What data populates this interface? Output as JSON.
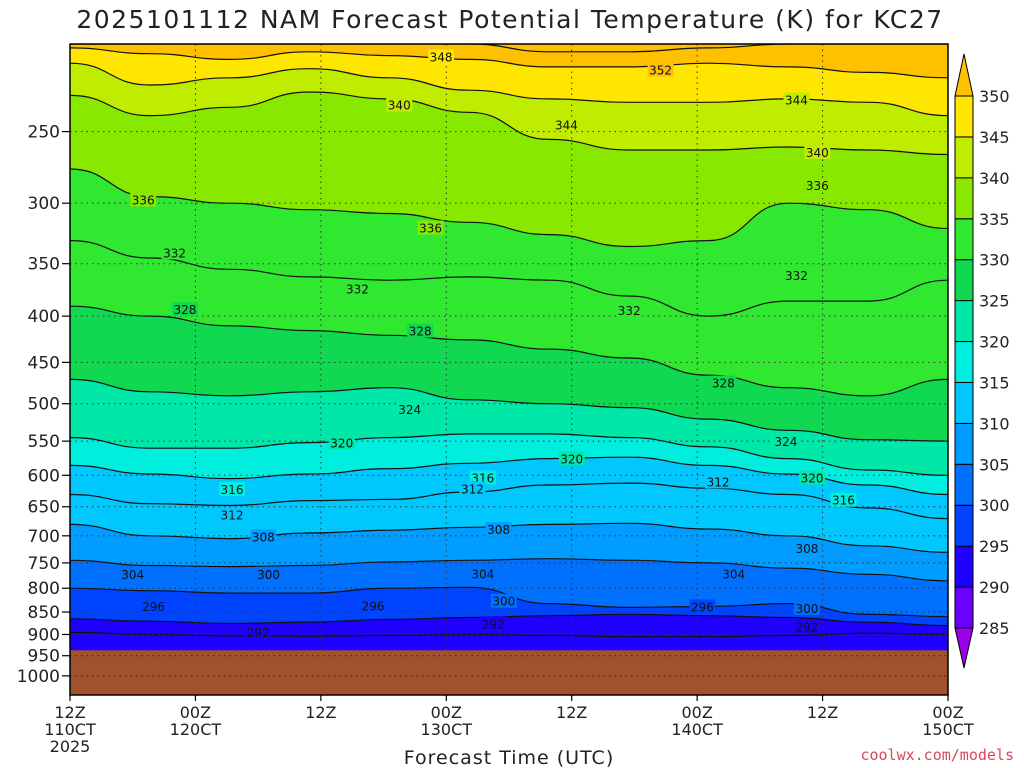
{
  "chart_data": {
    "type": "heatmap",
    "title": "2025101112 NAM Forecast Potential Temperature (K) for KC27",
    "xlabel": "Forecast Time (UTC)",
    "ylabel": "",
    "credit": "coolwx.com/models",
    "x_ticks": [
      {
        "hours": 0,
        "line1": "12Z",
        "line2": "110CT",
        "line3": "2025"
      },
      {
        "hours": 12,
        "line1": "00Z",
        "line2": "120CT",
        "line3": ""
      },
      {
        "hours": 24,
        "line1": "12Z",
        "line2": "",
        "line3": ""
      },
      {
        "hours": 36,
        "line1": "00Z",
        "line2": "130CT",
        "line3": ""
      },
      {
        "hours": 48,
        "line1": "12Z",
        "line2": "",
        "line3": ""
      },
      {
        "hours": 60,
        "line1": "00Z",
        "line2": "140CT",
        "line3": ""
      },
      {
        "hours": 72,
        "line1": "12Z",
        "line2": "",
        "line3": ""
      },
      {
        "hours": 84,
        "line1": "00Z",
        "line2": "150CT",
        "line3": ""
      }
    ],
    "xlim": [
      0,
      84
    ],
    "y_ticks": [
      250,
      300,
      350,
      400,
      450,
      500,
      550,
      600,
      650,
      700,
      750,
      800,
      850,
      900,
      950,
      1000
    ],
    "ylim": [
      1050,
      200
    ],
    "yscale": "log",
    "ground_pressure": 937,
    "ground_color": "#a0522d",
    "colorbar": {
      "levels": [
        285,
        290,
        295,
        300,
        305,
        310,
        315,
        320,
        325,
        330,
        335,
        340,
        345,
        350
      ],
      "colors": [
        "#9b00e8",
        "#6a00ff",
        "#1f00ff",
        "#0044ff",
        "#0070ff",
        "#009cff",
        "#00c8ff",
        "#00eedd",
        "#00e8a8",
        "#10d850",
        "#30e830",
        "#88e800",
        "#c0ec00",
        "#ffe600",
        "#ffc000"
      ]
    },
    "contours": [
      {
        "level": 292,
        "pressure": [
          895,
          900,
          903,
          904,
          902,
          900,
          902,
          905,
          905,
          902,
          897,
          900
        ]
      },
      {
        "level": 296,
        "pressure": [
          865,
          870,
          875,
          872,
          866,
          862,
          858,
          855,
          858,
          862,
          872,
          880
        ]
      },
      {
        "level": 300,
        "pressure": [
          800,
          805,
          810,
          810,
          800,
          798,
          832,
          840,
          838,
          832,
          855,
          860
        ]
      },
      {
        "level": 304,
        "pressure": [
          745,
          755,
          757,
          755,
          748,
          745,
          742,
          745,
          750,
          760,
          772,
          785
        ]
      },
      {
        "level": 308,
        "pressure": [
          680,
          700,
          705,
          695,
          690,
          685,
          680,
          678,
          688,
          700,
          718,
          730
        ]
      },
      {
        "level": 312,
        "pressure": [
          630,
          645,
          648,
          640,
          638,
          626,
          615,
          612,
          620,
          630,
          652,
          670
        ]
      },
      {
        "level": 316,
        "pressure": [
          585,
          598,
          605,
          598,
          590,
          582,
          575,
          573,
          585,
          598,
          615,
          630
        ]
      },
      {
        "level": 320,
        "pressure": [
          545,
          560,
          560,
          552,
          545,
          540,
          540,
          545,
          558,
          575,
          592,
          600
        ]
      },
      {
        "level": 324,
        "pressure": [
          470,
          485,
          490,
          485,
          480,
          495,
          500,
          505,
          520,
          535,
          548,
          550
        ]
      },
      {
        "level": 328,
        "pressure": [
          390,
          400,
          410,
          415,
          420,
          425,
          435,
          445,
          465,
          480,
          490,
          470
        ]
      },
      {
        "level": 332,
        "pressure": [
          330,
          345,
          355,
          362,
          365,
          362,
          365,
          380,
          400,
          385,
          385,
          365
        ]
      },
      {
        "level": 336,
        "pressure": [
          275,
          295,
          300,
          305,
          308,
          315,
          325,
          335,
          330,
          300,
          305,
          320
        ]
      },
      {
        "level": 340,
        "pressure": [
          228,
          240,
          235,
          226,
          230,
          238,
          255,
          262,
          262,
          260,
          262,
          265
        ]
      },
      {
        "level": 344,
        "pressure": [
          210,
          222,
          218,
          213,
          218,
          225,
          230,
          232,
          232,
          230,
          232,
          240
        ]
      },
      {
        "level": 348,
        "pressure": [
          202,
          205,
          208,
          204,
          206,
          208,
          212,
          212,
          210,
          212,
          215,
          218
        ]
      },
      {
        "level": 352,
        "pressure": [
          200,
          200,
          200,
          200,
          200,
          200,
          204,
          204,
          202,
          200,
          200,
          200
        ]
      }
    ],
    "contour_labels": [
      {
        "text": "348",
        "hours": 35.5,
        "pressure": 207
      },
      {
        "text": "352",
        "hours": 56.5,
        "pressure": 214
      },
      {
        "text": "344",
        "hours": 69.5,
        "pressure": 231
      },
      {
        "text": "340",
        "hours": 31.5,
        "pressure": 234
      },
      {
        "text": "344",
        "hours": 47.5,
        "pressure": 246
      },
      {
        "text": "340",
        "hours": 71.5,
        "pressure": 264
      },
      {
        "text": "336",
        "hours": 71.5,
        "pressure": 287
      },
      {
        "text": "336",
        "hours": 7.0,
        "pressure": 298
      },
      {
        "text": "336",
        "hours": 34.5,
        "pressure": 320
      },
      {
        "text": "332",
        "hours": 10.0,
        "pressure": 341
      },
      {
        "text": "332",
        "hours": 69.5,
        "pressure": 361
      },
      {
        "text": "332",
        "hours": 27.5,
        "pressure": 374
      },
      {
        "text": "328",
        "hours": 11.0,
        "pressure": 394
      },
      {
        "text": "332",
        "hours": 53.5,
        "pressure": 395
      },
      {
        "text": "328",
        "hours": 33.5,
        "pressure": 416
      },
      {
        "text": "328",
        "hours": 62.5,
        "pressure": 475
      },
      {
        "text": "324",
        "hours": 32.5,
        "pressure": 508
      },
      {
        "text": "324",
        "hours": 68.5,
        "pressure": 551
      },
      {
        "text": "320",
        "hours": 26.0,
        "pressure": 553
      },
      {
        "text": "320",
        "hours": 48.0,
        "pressure": 576
      },
      {
        "text": "316",
        "hours": 39.5,
        "pressure": 605
      },
      {
        "text": "320",
        "hours": 71.0,
        "pressure": 605
      },
      {
        "text": "312",
        "hours": 38.5,
        "pressure": 622
      },
      {
        "text": "312",
        "hours": 62.0,
        "pressure": 611
      },
      {
        "text": "316",
        "hours": 15.5,
        "pressure": 623
      },
      {
        "text": "316",
        "hours": 74.0,
        "pressure": 640
      },
      {
        "text": "312",
        "hours": 15.5,
        "pressure": 665
      },
      {
        "text": "308",
        "hours": 41.0,
        "pressure": 690
      },
      {
        "text": "308",
        "hours": 18.5,
        "pressure": 703
      },
      {
        "text": "308",
        "hours": 70.5,
        "pressure": 724
      },
      {
        "text": "304",
        "hours": 6.0,
        "pressure": 773
      },
      {
        "text": "300",
        "hours": 19.0,
        "pressure": 773
      },
      {
        "text": "304",
        "hours": 39.5,
        "pressure": 772
      },
      {
        "text": "304",
        "hours": 63.5,
        "pressure": 772
      },
      {
        "text": "296",
        "hours": 8.0,
        "pressure": 839
      },
      {
        "text": "300",
        "hours": 41.5,
        "pressure": 828
      },
      {
        "text": "296",
        "hours": 29.0,
        "pressure": 838
      },
      {
        "text": "296",
        "hours": 60.5,
        "pressure": 840
      },
      {
        "text": "300",
        "hours": 70.5,
        "pressure": 843
      },
      {
        "text": "292",
        "hours": 40.5,
        "pressure": 877
      },
      {
        "text": "292",
        "hours": 70.5,
        "pressure": 884
      },
      {
        "text": "292",
        "hours": 18.0,
        "pressure": 897
      }
    ]
  }
}
